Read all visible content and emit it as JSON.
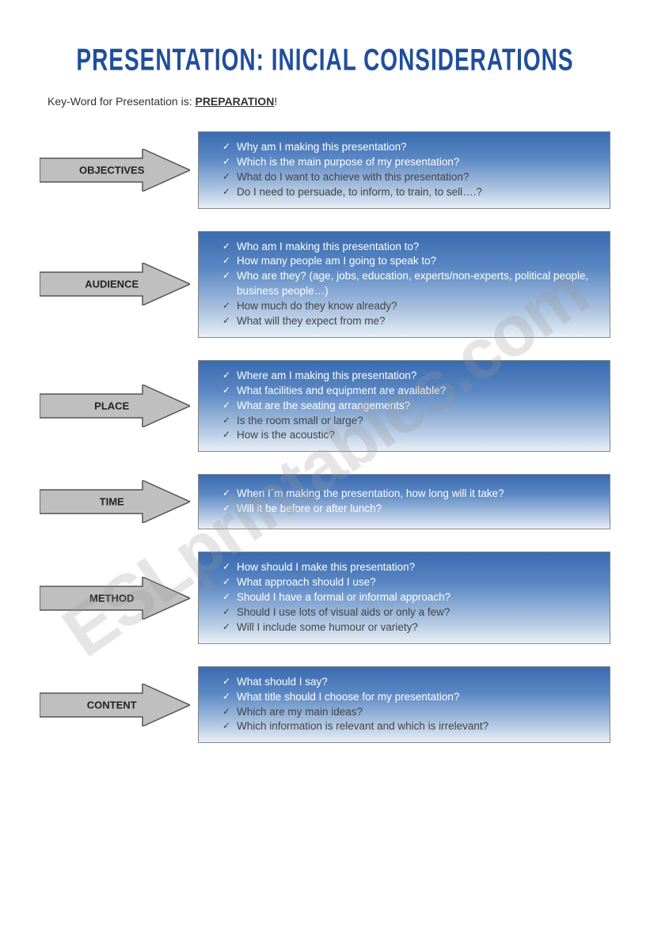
{
  "title": "PRESENTATION: INICIAL CONSIDERATIONS",
  "keyword_prefix": "Key-Word for Presentation is:  ",
  "keyword": "PREPARATION",
  "keyword_suffix": "!",
  "watermark": "ESLprintables.com",
  "arrow_fill": "#bfbfbf",
  "arrow_stroke": "#555555",
  "box_gradient_top": "#3a6bb0",
  "box_gradient_bottom": "#e8eff7",
  "sections": [
    {
      "label": "OBJECTIVES",
      "items": [
        "Why am I making this presentation?",
        "Which is the main purpose of my presentation?",
        "What do I want to achieve with this presentation?",
        "Do I need to persuade, to inform, to train, to sell….?"
      ]
    },
    {
      "label": "AUDIENCE",
      "items": [
        "Who am I making this presentation to?",
        "How many people am I going to speak to?",
        "Who are they? (age, jobs, education, experts/non-experts, political people, business people…)",
        "How much do they know already?",
        "What will they expect from me?"
      ]
    },
    {
      "label": "PLACE",
      "items": [
        "Where am I making this presentation?",
        "What facilities and equipment are available?",
        "What are the seating arrangements?",
        "Is the room small or large?",
        "How is the acoustic?"
      ]
    },
    {
      "label": "TIME",
      "items": [
        "When I´m making the presentation, how long will it take?",
        "Will it be before or after lunch?"
      ]
    },
    {
      "label": "METHOD",
      "items": [
        "How should I make this presentation?",
        "What approach should I use?",
        "Should I have a formal or informal approach?",
        "Should I use lots of visual aids or only a few?",
        "Will I include some humour or variety?"
      ]
    },
    {
      "label": "CONTENT",
      "items": [
        "What should I say?",
        "What title should I choose for my presentation?",
        "Which are my main ideas?",
        "Which information is relevant and which is irrelevant?"
      ]
    }
  ]
}
